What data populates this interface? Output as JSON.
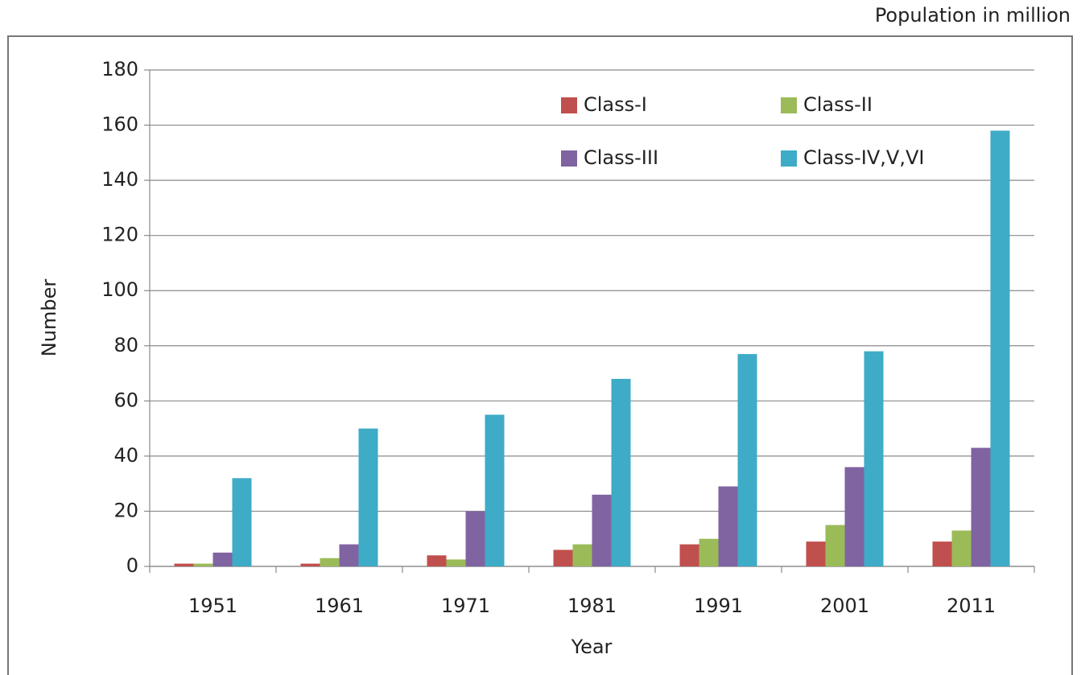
{
  "chart_data": {
    "type": "bar",
    "note_label": "Population in million",
    "ylabel": "Number",
    "xlabel": "Year",
    "categories": [
      "1951",
      "1961",
      "1971",
      "1981",
      "1991",
      "2001",
      "2011"
    ],
    "series": [
      {
        "name": "Class-I",
        "color": "#c0504d",
        "values": [
          1,
          1,
          4,
          6,
          8,
          9,
          9
        ]
      },
      {
        "name": "Class-II",
        "color": "#9bbb59",
        "values": [
          1,
          3,
          2.5,
          8,
          10,
          15,
          13
        ]
      },
      {
        "name": "Class-III",
        "color": "#8064a2",
        "values": [
          5,
          8,
          20,
          26,
          29,
          36,
          43
        ]
      },
      {
        "name": "Class-IV,V,VI",
        "color": "#3eabc7",
        "values": [
          32,
          50,
          55,
          68,
          77,
          78,
          158
        ]
      }
    ],
    "ylim": [
      0,
      180
    ],
    "yticks": [
      0,
      20,
      40,
      60,
      80,
      100,
      120,
      140,
      160,
      180
    ],
    "grid": true,
    "legend_position": "top-right"
  }
}
